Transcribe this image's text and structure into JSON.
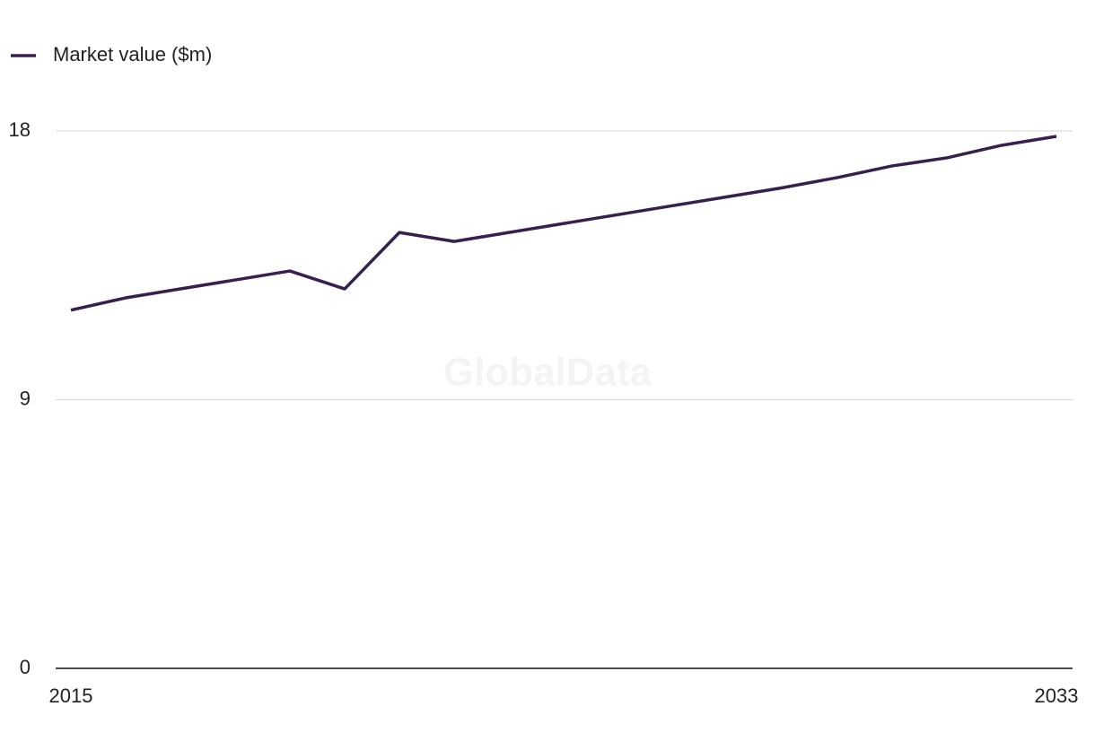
{
  "chart_data": {
    "type": "line",
    "watermark": "GlobalData",
    "x": [
      2015,
      2016,
      2017,
      2018,
      2019,
      2020,
      2021,
      2022,
      2023,
      2024,
      2025,
      2026,
      2027,
      2028,
      2029,
      2030,
      2031,
      2032,
      2033
    ],
    "series": [
      {
        "name": "Market value ($m)",
        "color": "#35204f",
        "values": [
          12.0,
          12.41,
          12.71,
          13.01,
          13.31,
          12.71,
          14.6,
          14.3,
          14.6,
          14.9,
          15.2,
          15.5,
          15.8,
          16.1,
          16.44,
          16.83,
          17.1,
          17.52,
          17.82
        ]
      }
    ],
    "xlim": [
      2015,
      2033
    ],
    "xticks": [
      2015,
      2033
    ],
    "ylim": [
      0,
      18
    ],
    "yticks": [
      0,
      9,
      18
    ],
    "grid": true,
    "legend": "top-left"
  }
}
